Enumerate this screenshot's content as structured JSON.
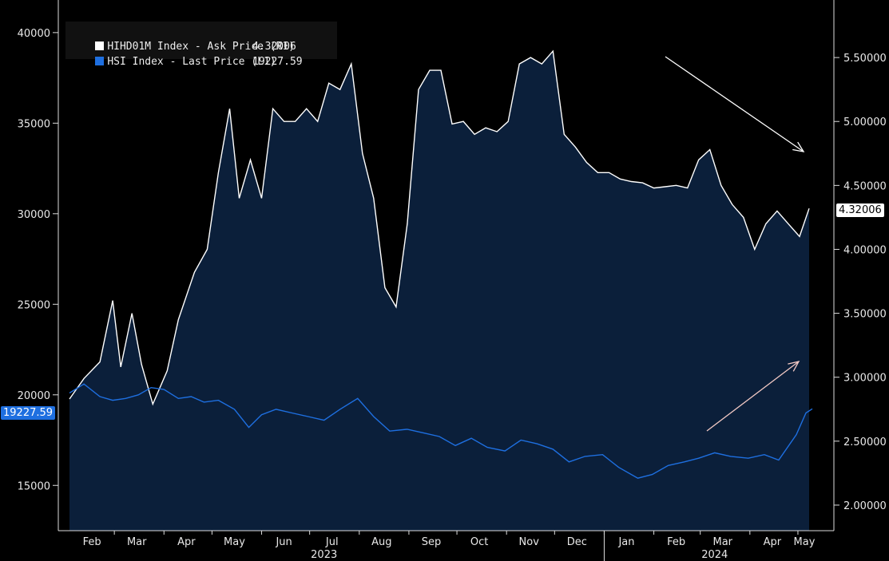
{
  "legend": {
    "r1": {
      "label": "HIHD01M Index - Ask Price (R1)",
      "value": "4.32006",
      "color": "#ffffff"
    },
    "l1": {
      "label": "HSI Index - Last Price (L1)",
      "value": "19227.59",
      "color": "#1e6fe0"
    }
  },
  "tags": {
    "right": "4.32006",
    "left": "19227.59"
  },
  "chart_data": {
    "type": "line",
    "x_tick_labels": [
      "Feb",
      "Mar",
      "Apr",
      "May",
      "Jun",
      "Jul",
      "Aug",
      "Sep",
      "Oct",
      "Nov",
      "Dec",
      "Jan",
      "Feb",
      "Mar",
      "Apr",
      "May"
    ],
    "year_labels": [
      "2023",
      "2024"
    ],
    "left_axis": {
      "ticks": [
        15000,
        20000,
        25000,
        30000,
        35000,
        40000
      ],
      "range": [
        12500,
        41800
      ]
    },
    "right_axis": {
      "ticks": [
        "2.00000",
        "2.50000",
        "3.00000",
        "3.50000",
        "4.00000",
        "4.50000",
        "5.00000",
        "5.50000"
      ],
      "range": [
        1.8,
        5.95
      ]
    },
    "series": [
      {
        "name": "HIHD01M Index - Ask Price (R1)",
        "axis": "right",
        "style": "area",
        "x": [
          "2023-02-01",
          "2023-02-10",
          "2023-02-20",
          "2023-02-28",
          "2023-03-05",
          "2023-03-12",
          "2023-03-18",
          "2023-03-25",
          "2023-04-03",
          "2023-04-10",
          "2023-04-20",
          "2023-04-28",
          "2023-05-05",
          "2023-05-12",
          "2023-05-18",
          "2023-05-25",
          "2023-06-01",
          "2023-06-08",
          "2023-06-15",
          "2023-06-22",
          "2023-06-29",
          "2023-07-06",
          "2023-07-13",
          "2023-07-20",
          "2023-07-27",
          "2023-08-03",
          "2023-08-10",
          "2023-08-17",
          "2023-08-24",
          "2023-08-31",
          "2023-09-07",
          "2023-09-14",
          "2023-09-21",
          "2023-09-28",
          "2023-10-05",
          "2023-10-12",
          "2023-10-19",
          "2023-10-26",
          "2023-11-02",
          "2023-11-09",
          "2023-11-16",
          "2023-11-23",
          "2023-11-30",
          "2023-12-07",
          "2023-12-14",
          "2023-12-21",
          "2023-12-28",
          "2024-01-04",
          "2024-01-11",
          "2024-01-18",
          "2024-01-25",
          "2024-02-01",
          "2024-02-08",
          "2024-02-15",
          "2024-02-22",
          "2024-02-29",
          "2024-03-07",
          "2024-03-14",
          "2024-03-21",
          "2024-03-28",
          "2024-04-04",
          "2024-04-11",
          "2024-04-18",
          "2024-04-25",
          "2024-05-02",
          "2024-05-08"
        ],
        "values": [
          2.83,
          2.99,
          3.12,
          3.6,
          3.08,
          3.5,
          3.1,
          2.79,
          3.05,
          3.45,
          3.82,
          4.0,
          4.6,
          5.1,
          4.4,
          4.7,
          4.4,
          5.1,
          5.0,
          5.0,
          5.1,
          5.0,
          5.3,
          5.25,
          5.45,
          4.75,
          4.4,
          3.7,
          3.55,
          4.2,
          5.25,
          5.4,
          5.4,
          4.98,
          5.0,
          4.9,
          4.95,
          4.92,
          5.0,
          5.45,
          5.5,
          5.45,
          5.55,
          4.9,
          4.8,
          4.68,
          4.6,
          4.6,
          4.55,
          4.53,
          4.52,
          4.48,
          4.49,
          4.5,
          4.48,
          4.7,
          4.78,
          4.5,
          4.35,
          4.25,
          4.0,
          4.2,
          4.3,
          4.2,
          4.1,
          4.32006
        ]
      },
      {
        "name": "HSI Index - Last Price (L1)",
        "axis": "left",
        "style": "line",
        "x": [
          "2023-02-01",
          "2023-02-10",
          "2023-02-20",
          "2023-02-28",
          "2023-03-08",
          "2023-03-16",
          "2023-03-24",
          "2023-04-01",
          "2023-04-10",
          "2023-04-18",
          "2023-04-26",
          "2023-05-05",
          "2023-05-15",
          "2023-05-24",
          "2023-06-01",
          "2023-06-10",
          "2023-06-20",
          "2023-06-30",
          "2023-07-10",
          "2023-07-20",
          "2023-07-31",
          "2023-08-10",
          "2023-08-20",
          "2023-08-31",
          "2023-09-10",
          "2023-09-20",
          "2023-09-30",
          "2023-10-10",
          "2023-10-20",
          "2023-10-31",
          "2023-11-10",
          "2023-11-20",
          "2023-11-30",
          "2023-12-10",
          "2023-12-20",
          "2023-12-31",
          "2024-01-10",
          "2024-01-22",
          "2024-01-31",
          "2024-02-10",
          "2024-02-20",
          "2024-02-29",
          "2024-03-10",
          "2024-03-20",
          "2024-03-31",
          "2024-04-10",
          "2024-04-19",
          "2024-04-30",
          "2024-05-06",
          "2024-05-10"
        ],
        "values": [
          20100,
          20600,
          19900,
          19700,
          19800,
          20000,
          20400,
          20300,
          19800,
          19900,
          19600,
          19700,
          19200,
          18200,
          18900,
          19200,
          19000,
          18800,
          18600,
          19200,
          19800,
          18800,
          18000,
          18100,
          17900,
          17700,
          17200,
          17600,
          17100,
          16900,
          17500,
          17300,
          17000,
          16300,
          16600,
          16700,
          16000,
          15400,
          15600,
          16100,
          16300,
          16500,
          16800,
          16600,
          16500,
          16700,
          16400,
          17800,
          19000,
          19227.59
        ]
      }
    ],
    "annotations": [
      {
        "type": "arrow",
        "direction": "down-right"
      },
      {
        "type": "arrow",
        "direction": "up-right"
      }
    ],
    "grid": false
  }
}
